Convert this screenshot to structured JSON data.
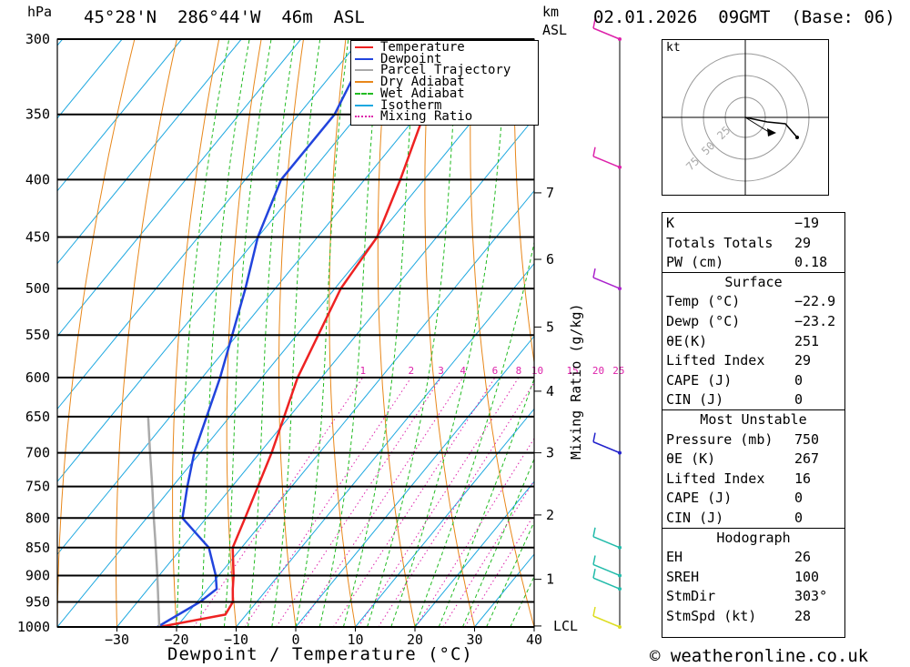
{
  "header": {
    "location": "45°28'N  286°44'W  46m  ASL",
    "hpa": "hPa",
    "km": "km",
    "asl": "ASL",
    "date": "02.01.2026  09GMT  (Base: 06)"
  },
  "chart_data": {
    "type": "line",
    "title": "",
    "xlabel": "Dewpoint / Temperature (°C)",
    "ylabel": "hPa",
    "xlim": [
      -40,
      40
    ],
    "ylim": [
      1000,
      300
    ],
    "y_scale": "log",
    "skew": "skew-T",
    "pressure_levels": [
      300,
      350,
      400,
      450,
      500,
      550,
      600,
      650,
      700,
      750,
      800,
      850,
      900,
      950,
      1000
    ],
    "x_ticks": [
      -30,
      -20,
      -10,
      0,
      10,
      20,
      30,
      40
    ],
    "km_ticks": [
      {
        "km": "1",
        "p": 907
      },
      {
        "km": "2",
        "p": 795
      },
      {
        "km": "3",
        "p": 700
      },
      {
        "km": "4",
        "p": 617
      },
      {
        "km": "5",
        "p": 541
      },
      {
        "km": "6",
        "p": 471
      },
      {
        "km": "7",
        "p": 411
      }
    ],
    "lcl": {
      "label": "LCL",
      "p": 998
    },
    "mixing_ratio_label": "Mixing Ratio (g/kg)",
    "mixing_ratio_values": [
      "1",
      "2",
      "3",
      "4",
      "6",
      "8",
      "10",
      "15",
      "20",
      "25"
    ],
    "legend": [
      "Temperature",
      "Dewpoint",
      "Parcel Trajectory",
      "Dry Adiabat",
      "Wet Adiabat",
      "Isotherm",
      "Mixing Ratio"
    ],
    "legend_position": "top-right",
    "colors": {
      "temperature": "#ee2222",
      "dewpoint": "#2244dd",
      "parcel": "#aaaaaa",
      "dry": "#e8871a",
      "wet": "#22bb22",
      "isotherm": "#1ea8e0",
      "mixing": "#dd22aa"
    },
    "series": [
      {
        "name": "Temperature",
        "points": [
          [
            1000,
            -22.9
          ],
          [
            975,
            -13.5
          ],
          [
            950,
            -14
          ],
          [
            925,
            -15.8
          ],
          [
            900,
            -17.5
          ],
          [
            850,
            -21.5
          ],
          [
            800,
            -23.5
          ],
          [
            700,
            -28
          ],
          [
            600,
            -34
          ],
          [
            500,
            -39
          ],
          [
            450,
            -40
          ],
          [
            400,
            -44
          ],
          [
            350,
            -49
          ],
          [
            300,
            -55
          ]
        ]
      },
      {
        "name": "Dewpoint",
        "points": [
          [
            1000,
            -23.2
          ],
          [
            950,
            -19.5
          ],
          [
            925,
            -18.5
          ],
          [
            900,
            -20.5
          ],
          [
            850,
            -25.5
          ],
          [
            800,
            -34
          ],
          [
            750,
            -37.5
          ],
          [
            700,
            -41
          ],
          [
            600,
            -47
          ],
          [
            500,
            -55
          ],
          [
            450,
            -60
          ],
          [
            400,
            -64
          ],
          [
            350,
            -64
          ],
          [
            300,
            -68
          ]
        ]
      },
      {
        "name": "Parcel Trajectory",
        "points": [
          [
            1000,
            -22.9
          ],
          [
            950,
            -26.5
          ],
          [
            900,
            -30.3
          ],
          [
            850,
            -34.4
          ],
          [
            800,
            -38.8
          ],
          [
            750,
            -43.4
          ],
          [
            700,
            -48.4
          ],
          [
            650,
            -53.7
          ]
        ]
      }
    ],
    "wind_barbs": [
      {
        "p": 300,
        "color": "#dd22aa"
      },
      {
        "p": 390,
        "color": "#dd22aa"
      },
      {
        "p": 500,
        "color": "#aa22cc"
      },
      {
        "p": 700,
        "color": "#2222cc"
      },
      {
        "p": 850,
        "color": "#22bbaa"
      },
      {
        "p": 900,
        "color": "#22bbaa"
      },
      {
        "p": 925,
        "color": "#22bbaa"
      },
      {
        "p": 1000,
        "color": "#dddd22"
      }
    ]
  },
  "hodograph": {
    "unit": "kt",
    "ring_labels": [
      "25",
      "50",
      "75"
    ]
  },
  "indices": {
    "rows": [
      {
        "k": "K",
        "v": "-19"
      },
      {
        "k": "Totals Totals",
        "v": "29"
      },
      {
        "k": "PW (cm)",
        "v": "0.18"
      }
    ],
    "surface": {
      "title": "Surface",
      "rows": [
        {
          "k": "Temp (°C)",
          "v": "-22.9"
        },
        {
          "k": "Dewp (°C)",
          "v": "-23.2"
        },
        {
          "k": "θE(K)",
          "v": "251"
        },
        {
          "k": "Lifted Index",
          "v": "29"
        },
        {
          "k": "CAPE (J)",
          "v": "0"
        },
        {
          "k": "CIN (J)",
          "v": "0"
        }
      ]
    },
    "most_unstable": {
      "title": "Most Unstable",
      "rows": [
        {
          "k": "Pressure (mb)",
          "v": "750"
        },
        {
          "k": "θE (K)",
          "v": "267"
        },
        {
          "k": "Lifted Index",
          "v": "16"
        },
        {
          "k": "CAPE (J)",
          "v": "0"
        },
        {
          "k": "CIN (J)",
          "v": "0"
        }
      ]
    },
    "hodograph": {
      "title": "Hodograph",
      "rows": [
        {
          "k": "EH",
          "v": "26"
        },
        {
          "k": "SREH",
          "v": "100"
        },
        {
          "k": "StmDir",
          "v": "303°"
        },
        {
          "k": "StmSpd (kt)",
          "v": "28"
        }
      ]
    }
  },
  "footer": {
    "credit": "© weatheronline.co.uk"
  }
}
